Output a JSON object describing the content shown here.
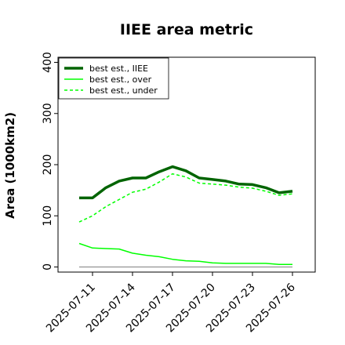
{
  "chart_data": {
    "type": "line",
    "title": "IIEE area metric",
    "xlabel": "",
    "ylabel": "Area (1000km2)",
    "x": [
      "2025-07-10",
      "2025-07-11",
      "2025-07-12",
      "2025-07-13",
      "2025-07-14",
      "2025-07-15",
      "2025-07-16",
      "2025-07-17",
      "2025-07-18",
      "2025-07-19",
      "2025-07-20",
      "2025-07-21",
      "2025-07-22",
      "2025-07-23",
      "2025-07-24",
      "2025-07-25",
      "2025-07-26"
    ],
    "xticks": [
      "2025-07-11",
      "2025-07-14",
      "2025-07-17",
      "2025-07-20",
      "2025-07-23",
      "2025-07-26"
    ],
    "yticks": [
      0,
      100,
      200,
      300,
      400
    ],
    "ylim": [
      -10,
      410
    ],
    "grid": false,
    "legend_position": "upper-left",
    "series": [
      {
        "name": "best est., IIEE",
        "style": "solid-thick",
        "color": "#006400",
        "values": [
          135,
          135,
          155,
          168,
          174,
          174,
          186,
          196,
          188,
          174,
          171,
          168,
          162,
          161,
          155,
          145,
          148
        ]
      },
      {
        "name": "best est., over",
        "style": "solid",
        "color": "#00ff00",
        "values": [
          46,
          37,
          36,
          35,
          27,
          23,
          20,
          15,
          12,
          11,
          8,
          7,
          7,
          7,
          7,
          5,
          5
        ]
      },
      {
        "name": "best est., under",
        "style": "dashed",
        "color": "#00ff00",
        "values": [
          88,
          100,
          118,
          132,
          146,
          152,
          166,
          182,
          176,
          164,
          162,
          160,
          156,
          154,
          148,
          140,
          143
        ]
      },
      {
        "name": "",
        "style": "solid-thin",
        "color": "#808080",
        "values": [
          0,
          0,
          0,
          0,
          0,
          0,
          0,
          0,
          0,
          0,
          0,
          0,
          0,
          0,
          0,
          0,
          0
        ]
      }
    ]
  }
}
